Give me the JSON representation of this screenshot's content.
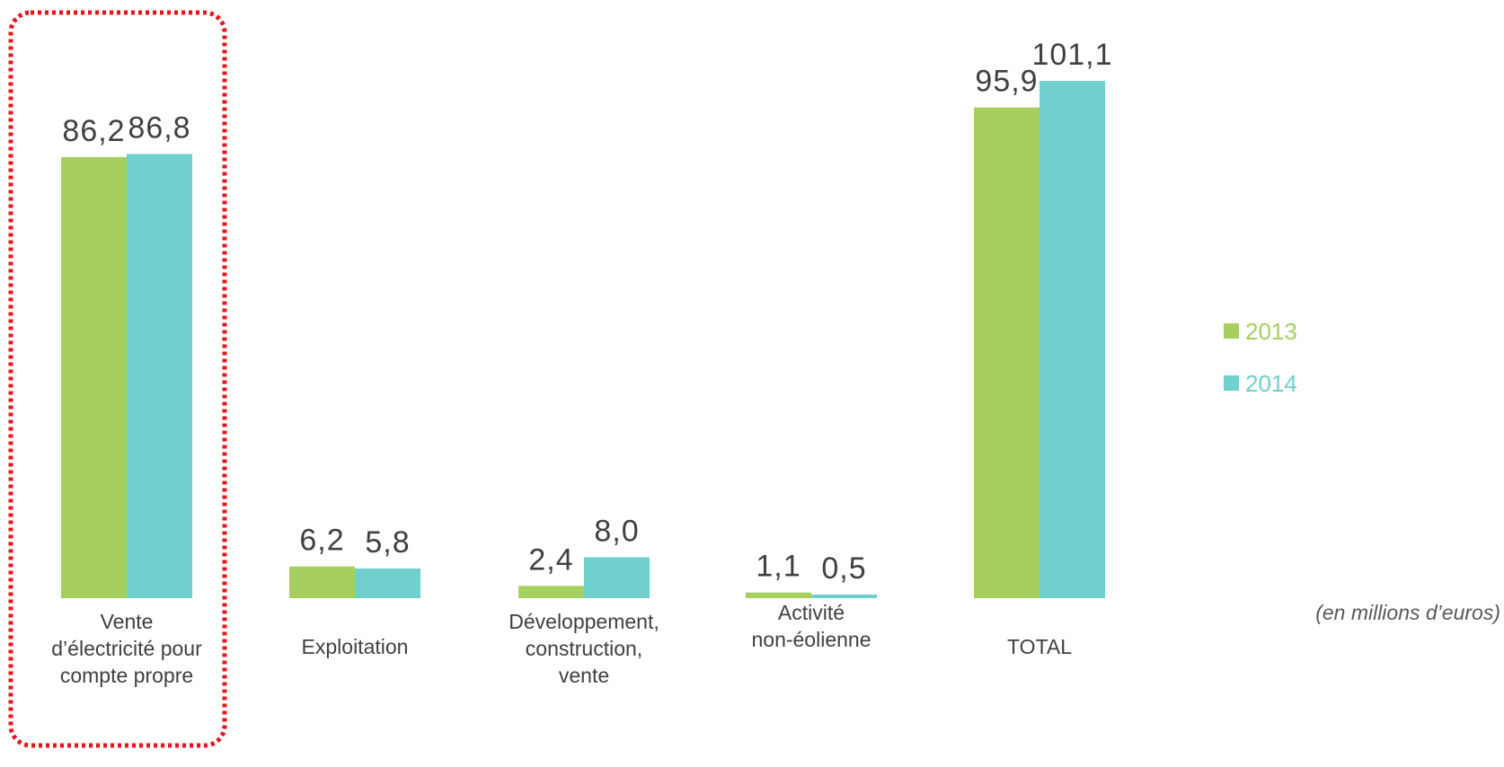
{
  "chart_data": {
    "type": "bar",
    "categories": [
      [
        "Vente",
        "d’électricité pour",
        "compte propre"
      ],
      [
        "Exploitation"
      ],
      [
        "Développement,",
        "construction,",
        "vente"
      ],
      [
        "Activité",
        "non-éolienne"
      ],
      [
        "TOTAL"
      ]
    ],
    "series": [
      {
        "name": "2013",
        "color": "#a6cf5f",
        "values": [
          86.2,
          6.2,
          2.4,
          1.1,
          95.9
        ],
        "labels": [
          "86,2",
          "6,2",
          "2,4",
          "1,1",
          "95,9"
        ]
      },
      {
        "name": "2014",
        "color": "#6fd0cd",
        "values": [
          86.8,
          5.8,
          8.0,
          0.5,
          101.1
        ],
        "labels": [
          "86,8",
          "5,8",
          "8,0",
          "0,5",
          "101,1"
        ]
      }
    ],
    "ylim": [
      0,
      101.1
    ],
    "grid": false,
    "legend_position": "right",
    "unit_note": "(en millions d’euros)",
    "highlighted_categories": [
      0,
      4
    ],
    "highlight_color": "#e8141b"
  }
}
